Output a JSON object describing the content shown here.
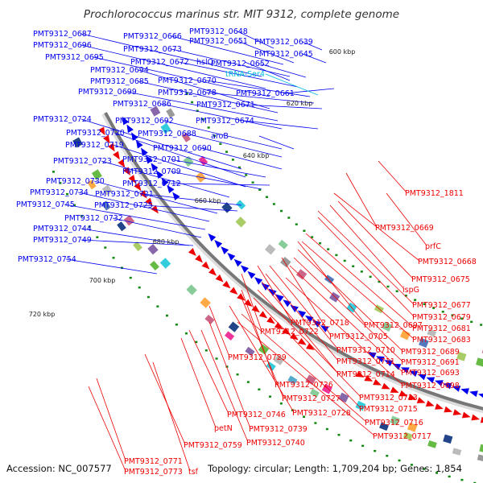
{
  "title": "Prochlorococcus marinus str. MIT 9312, complete genome",
  "footer": {
    "accession": "Accession: NC_007577",
    "summary": "Topology: circular; Length: 1,709,204 bp; Genes: 1,854"
  },
  "colors": {
    "forward": "#0000ee",
    "reverse": "#ee0000",
    "rna": "#00bbdd",
    "backbone": "#777777",
    "tick_dots": "#118811"
  },
  "ticks": [
    {
      "label": "600 kbp"
    },
    {
      "label": "620 kbp"
    },
    {
      "label": "640 kbp"
    },
    {
      "label": "660 kbp"
    },
    {
      "label": "680 kbp"
    },
    {
      "label": "700 kbp"
    },
    {
      "label": "720 kbp"
    }
  ],
  "forward_labels": [
    {
      "text": "PMT9312_0687"
    },
    {
      "text": "PMT9312_0666"
    },
    {
      "text": "PMT9312_0648"
    },
    {
      "text": "PMT9312_0696"
    },
    {
      "text": "PMT9312_0651"
    },
    {
      "text": "PMT9312_0639"
    },
    {
      "text": "PMT9312_0673"
    },
    {
      "text": "PMT9312_0645"
    },
    {
      "text": "PMT9312_0695"
    },
    {
      "text": "PMT9312_0672"
    },
    {
      "text": "hslO"
    },
    {
      "text": "PMT9312_0652"
    },
    {
      "text": "PMT9312_0694"
    },
    {
      "text": "PMT9312_0685"
    },
    {
      "text": "PMT9312_0670"
    },
    {
      "text": "PMT9312_0699"
    },
    {
      "text": "PMT9312_0678"
    },
    {
      "text": "PMT9312_0661"
    },
    {
      "text": "PMT9312_0686"
    },
    {
      "text": "PMT9312_0671"
    },
    {
      "text": "PMT9312_0724"
    },
    {
      "text": "PMT9312_0692"
    },
    {
      "text": "PMT9312_0674"
    },
    {
      "text": "PMT9312_0720"
    },
    {
      "text": "PMT9312_0688"
    },
    {
      "text": "aroB"
    },
    {
      "text": "PMT9312_0719"
    },
    {
      "text": "PMT9312_0690"
    },
    {
      "text": "PMT9312_0701"
    },
    {
      "text": "PMT9312_0723"
    },
    {
      "text": "PMT9312_0709"
    },
    {
      "text": "PMT9312_0712"
    },
    {
      "text": "PMT9312_0730"
    },
    {
      "text": "PMT9312_0734"
    },
    {
      "text": "PMT9312_0721"
    },
    {
      "text": "PMT9312_0745"
    },
    {
      "text": "PMT9312_0725"
    },
    {
      "text": "PMT9312_0732"
    },
    {
      "text": "PMT9312_0744"
    },
    {
      "text": "PMT9312_0749"
    },
    {
      "text": "PMT9312_0754"
    }
  ],
  "rna_labels": [
    {
      "text": "tRNA-Ser4"
    }
  ],
  "reverse_labels": [
    {
      "text": "PMT9312_1811"
    },
    {
      "text": "PMT9312_0669"
    },
    {
      "text": "prfC"
    },
    {
      "text": "PMT9312_0668"
    },
    {
      "text": "PMT9312_0675"
    },
    {
      "text": "ispG"
    },
    {
      "text": "PMT9312_0677"
    },
    {
      "text": "PMT9312_0679"
    },
    {
      "text": "PMT9312_0718"
    },
    {
      "text": "PMT9312_0697"
    },
    {
      "text": "PMT9312_0681"
    },
    {
      "text": "PMT9312_0722"
    },
    {
      "text": "PMT9312_0705"
    },
    {
      "text": "PMT9312_0683"
    },
    {
      "text": "PMT9312_0710"
    },
    {
      "text": "PMT9312_0689"
    },
    {
      "text": "PMT9312_0711"
    },
    {
      "text": "PMT9312_0691"
    },
    {
      "text": "PMT9312_0729"
    },
    {
      "text": "PMT9312_0714"
    },
    {
      "text": "PMT9312_0693"
    },
    {
      "text": "PMT9312_0698"
    },
    {
      "text": "PMT9312_0726"
    },
    {
      "text": "PMT9312_0727"
    },
    {
      "text": "PMT9312_0713"
    },
    {
      "text": "PMT9312_0715"
    },
    {
      "text": "PMT9312_0728"
    },
    {
      "text": "PMT9312_0746"
    },
    {
      "text": "PMT9312_0716"
    },
    {
      "text": "PMT9312_0739"
    },
    {
      "text": "petN"
    },
    {
      "text": "PMT9312_0717"
    },
    {
      "text": "PMT9312_0759"
    },
    {
      "text": "PMT9312_0740"
    },
    {
      "text": "PMT9312_0771"
    },
    {
      "text": "PMT9312_0773"
    },
    {
      "text": "tsf"
    }
  ]
}
